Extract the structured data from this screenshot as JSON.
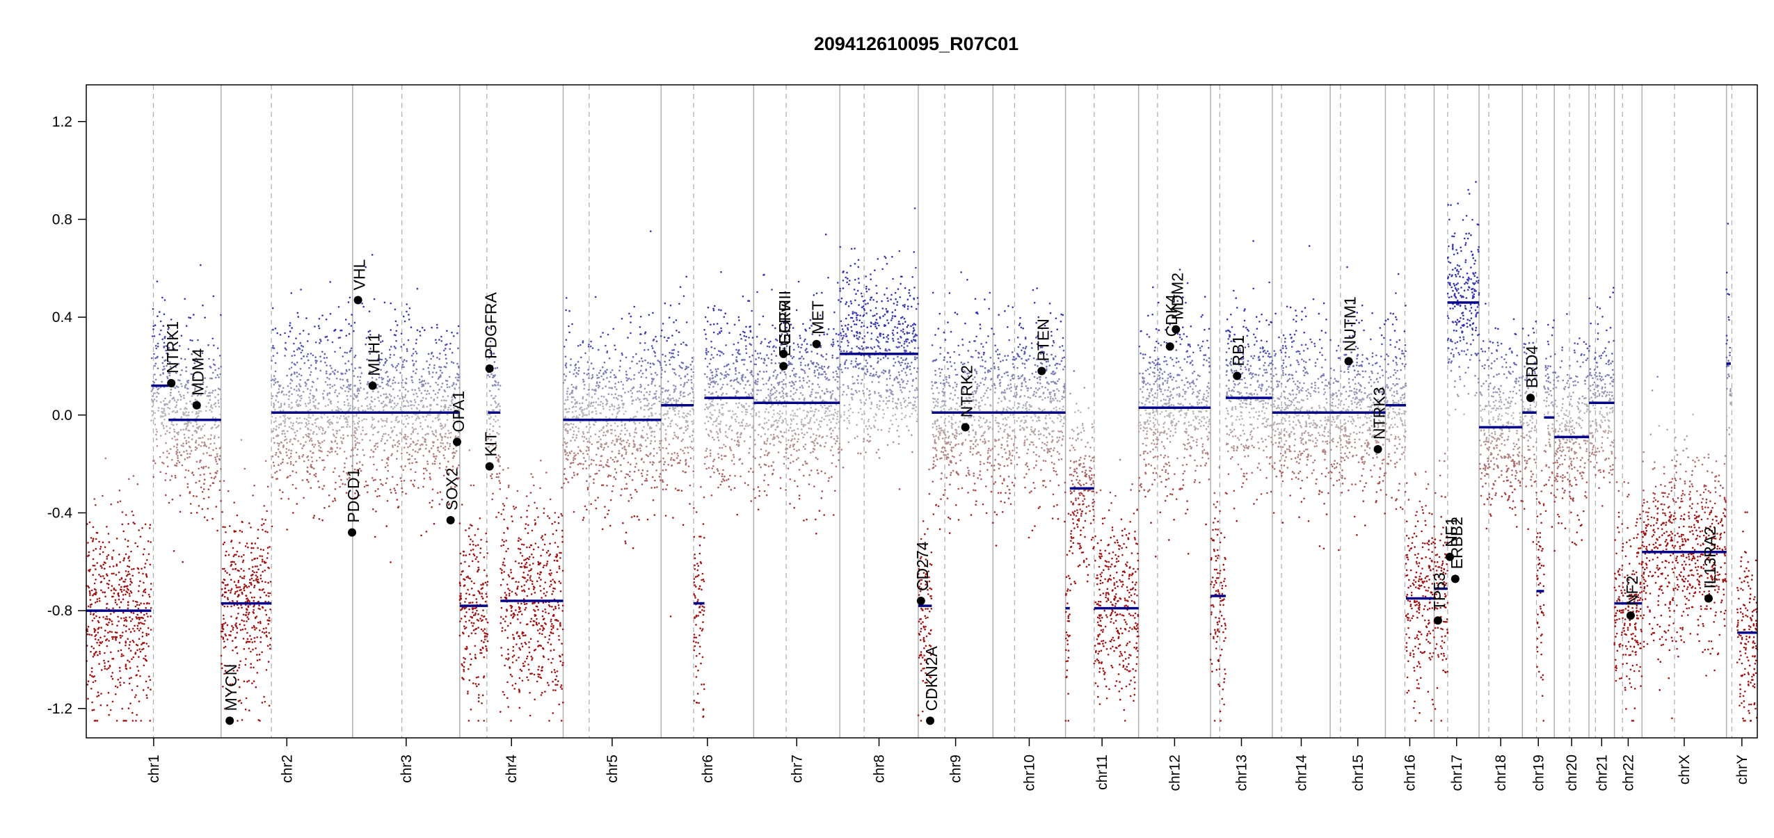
{
  "colors": {
    "segment": "#00008B",
    "gain_point": "#3333B2",
    "loss_point": "#A01010",
    "neutral_point": "#BBBBBB",
    "axis": "#000000",
    "chrom_border": "#B0B0B0",
    "centromere": "#B0B0B0"
  },
  "chart_data": {
    "type": "scatter",
    "title": "209412610095_R07C01",
    "xlabel": "",
    "ylabel": "",
    "ylim": [
      -1.32,
      1.35
    ],
    "y_ticks": [
      -1.2,
      -0.8,
      -0.4,
      0.0,
      0.4,
      0.8,
      1.2
    ],
    "y_tick_labels": [
      "-1.2",
      "-0.8",
      "-0.4",
      "0.0",
      "0.4",
      "0.8",
      "1.2"
    ],
    "grid": false,
    "chromosomes": [
      {
        "name": "chr1",
        "length": 249,
        "centromere": 124
      },
      {
        "name": "chr2",
        "length": 243,
        "centromere": 93
      },
      {
        "name": "chr3",
        "length": 198,
        "centromere": 91
      },
      {
        "name": "chr4",
        "length": 191,
        "centromere": 50
      },
      {
        "name": "chr5",
        "length": 181,
        "centromere": 48
      },
      {
        "name": "chr6",
        "length": 171,
        "centromere": 60
      },
      {
        "name": "chr7",
        "length": 159,
        "centromere": 60
      },
      {
        "name": "chr8",
        "length": 145,
        "centromere": 45
      },
      {
        "name": "chr9",
        "length": 138,
        "centromere": 49
      },
      {
        "name": "chr10",
        "length": 134,
        "centromere": 40
      },
      {
        "name": "chr11",
        "length": 135,
        "centromere": 53
      },
      {
        "name": "chr12",
        "length": 133,
        "centromere": 35
      },
      {
        "name": "chr13",
        "length": 114,
        "centromere": 17
      },
      {
        "name": "chr14",
        "length": 107,
        "centromere": 17
      },
      {
        "name": "chr15",
        "length": 102,
        "centromere": 19
      },
      {
        "name": "chr16",
        "length": 90,
        "centromere": 36
      },
      {
        "name": "chr17",
        "length": 83,
        "centromere": 25
      },
      {
        "name": "chr18",
        "length": 80,
        "centromere": 18
      },
      {
        "name": "chr19",
        "length": 59,
        "centromere": 26
      },
      {
        "name": "chr20",
        "length": 64,
        "centromere": 28
      },
      {
        "name": "chr21",
        "length": 47,
        "centromere": 12
      },
      {
        "name": "chr22",
        "length": 51,
        "centromere": 15
      },
      {
        "name": "chrX",
        "length": 156,
        "centromere": 60
      },
      {
        "name": "chrY",
        "length": 57,
        "centromere": 10
      }
    ],
    "segments": [
      {
        "chrom": "chr1",
        "start": 0,
        "end": 120,
        "value": -0.8
      },
      {
        "chrom": "chr1",
        "start": 120,
        "end": 152,
        "value": 0.12
      },
      {
        "chrom": "chr1",
        "start": 152,
        "end": 249,
        "value": -0.02
      },
      {
        "chrom": "chr2",
        "start": 0,
        "end": 93,
        "value": -0.77
      },
      {
        "chrom": "chr2",
        "start": 93,
        "end": 243,
        "value": 0.01
      },
      {
        "chrom": "chr3",
        "start": 0,
        "end": 198,
        "value": 0.01
      },
      {
        "chrom": "chr4",
        "start": 0,
        "end": 52,
        "value": -0.78
      },
      {
        "chrom": "chr4",
        "start": 52,
        "end": 75,
        "value": 0.01
      },
      {
        "chrom": "chr4",
        "start": 75,
        "end": 191,
        "value": -0.76
      },
      {
        "chrom": "chr5",
        "start": 0,
        "end": 181,
        "value": -0.02
      },
      {
        "chrom": "chr6",
        "start": 0,
        "end": 60,
        "value": 0.04
      },
      {
        "chrom": "chr6",
        "start": 60,
        "end": 80,
        "value": -0.77
      },
      {
        "chrom": "chr6",
        "start": 80,
        "end": 171,
        "value": 0.07
      },
      {
        "chrom": "chr7",
        "start": 0,
        "end": 159,
        "value": 0.05
      },
      {
        "chrom": "chr8",
        "start": 0,
        "end": 145,
        "value": 0.25
      },
      {
        "chrom": "chr9",
        "start": 0,
        "end": 25,
        "value": -0.78
      },
      {
        "chrom": "chr9",
        "start": 25,
        "end": 138,
        "value": 0.01
      },
      {
        "chrom": "chr10",
        "start": 0,
        "end": 134,
        "value": 0.01
      },
      {
        "chrom": "chr11",
        "start": 0,
        "end": 8,
        "value": -0.79
      },
      {
        "chrom": "chr11",
        "start": 8,
        "end": 53,
        "value": -0.3
      },
      {
        "chrom": "chr11",
        "start": 53,
        "end": 135,
        "value": -0.79
      },
      {
        "chrom": "chr12",
        "start": 0,
        "end": 133,
        "value": 0.03
      },
      {
        "chrom": "chr13",
        "start": 0,
        "end": 28,
        "value": -0.74
      },
      {
        "chrom": "chr13",
        "start": 28,
        "end": 114,
        "value": 0.07
      },
      {
        "chrom": "chr14",
        "start": 0,
        "end": 107,
        "value": 0.01
      },
      {
        "chrom": "chr15",
        "start": 0,
        "end": 102,
        "value": 0.01
      },
      {
        "chrom": "chr16",
        "start": 0,
        "end": 38,
        "value": 0.04
      },
      {
        "chrom": "chr16",
        "start": 38,
        "end": 90,
        "value": -0.75
      },
      {
        "chrom": "chr17",
        "start": 0,
        "end": 25,
        "value": -0.71
      },
      {
        "chrom": "chr17",
        "start": 25,
        "end": 83,
        "value": 0.46
      },
      {
        "chrom": "chr18",
        "start": 0,
        "end": 80,
        "value": -0.05
      },
      {
        "chrom": "chr19",
        "start": 0,
        "end": 26,
        "value": 0.01
      },
      {
        "chrom": "chr19",
        "start": 26,
        "end": 40,
        "value": -0.72
      },
      {
        "chrom": "chr19",
        "start": 40,
        "end": 59,
        "value": -0.01
      },
      {
        "chrom": "chr20",
        "start": 0,
        "end": 64,
        "value": -0.09
      },
      {
        "chrom": "chr21",
        "start": 0,
        "end": 47,
        "value": 0.05
      },
      {
        "chrom": "chr22",
        "start": 0,
        "end": 51,
        "value": -0.77
      },
      {
        "chrom": "chrX",
        "start": 0,
        "end": 156,
        "value": -0.56
      },
      {
        "chrom": "chrY",
        "start": 0,
        "end": 8,
        "value": 0.21
      },
      {
        "chrom": "chrY",
        "start": 20,
        "end": 57,
        "value": -0.89
      }
    ],
    "genes": [
      {
        "name": "NTRK1",
        "chrom": "chr1",
        "pos": 157,
        "value": 0.13
      },
      {
        "name": "MDM4",
        "chrom": "chr1",
        "pos": 204,
        "value": 0.04
      },
      {
        "name": "MYCN",
        "chrom": "chr2",
        "pos": 16,
        "value": -1.25
      },
      {
        "name": "VHL",
        "chrom": "chr3",
        "pos": 10,
        "value": 0.47
      },
      {
        "name": "MLH1",
        "chrom": "chr3",
        "pos": 37,
        "value": 0.12
      },
      {
        "name": "PDCD1",
        "chrom": "chr2",
        "pos": 242,
        "value": -0.48
      },
      {
        "name": "SOX2",
        "chrom": "chr3",
        "pos": 181,
        "value": -0.43
      },
      {
        "name": "OPA1",
        "chrom": "chr3",
        "pos": 193,
        "value": -0.11
      },
      {
        "name": "PDGFRA",
        "chrom": "chr4",
        "pos": 55,
        "value": 0.19
      },
      {
        "name": "KIT",
        "chrom": "chr4",
        "pos": 55,
        "value": -0.21
      },
      {
        "name": "EGFR",
        "chrom": "chr7",
        "pos": 55,
        "value": 0.25
      },
      {
        "name": "EGFRvIII",
        "chrom": "chr7",
        "pos": 55,
        "value": 0.2
      },
      {
        "name": "MET",
        "chrom": "chr7",
        "pos": 116,
        "value": 0.29
      },
      {
        "name": "CD274",
        "chrom": "chr9",
        "pos": 5,
        "value": -0.76
      },
      {
        "name": "CDKN2A",
        "chrom": "chr9",
        "pos": 22,
        "value": -1.25
      },
      {
        "name": "NTRK2",
        "chrom": "chr9",
        "pos": 87,
        "value": -0.05
      },
      {
        "name": "PTEN",
        "chrom": "chr10",
        "pos": 90,
        "value": 0.18
      },
      {
        "name": "CDK4",
        "chrom": "chr12",
        "pos": 58,
        "value": 0.28
      },
      {
        "name": "MDM2",
        "chrom": "chr12",
        "pos": 69,
        "value": 0.35
      },
      {
        "name": "RB1",
        "chrom": "chr13",
        "pos": 49,
        "value": 0.16
      },
      {
        "name": "NUTM1",
        "chrom": "chr15",
        "pos": 34,
        "value": 0.22
      },
      {
        "name": "NTRK3",
        "chrom": "chr15",
        "pos": 88,
        "value": -0.14
      },
      {
        "name": "TP53",
        "chrom": "chr17",
        "pos": 7,
        "value": -0.84
      },
      {
        "name": "NF1",
        "chrom": "chr17",
        "pos": 29,
        "value": -0.58
      },
      {
        "name": "ERBB2",
        "chrom": "chr17",
        "pos": 39,
        "value": -0.67
      },
      {
        "name": "BRD4",
        "chrom": "chr19",
        "pos": 15,
        "value": 0.07
      },
      {
        "name": "NF2",
        "chrom": "chr22",
        "pos": 30,
        "value": -0.82
      },
      {
        "name": "IL13RA2",
        "chrom": "chrX",
        "pos": 123,
        "value": -0.75
      }
    ]
  }
}
